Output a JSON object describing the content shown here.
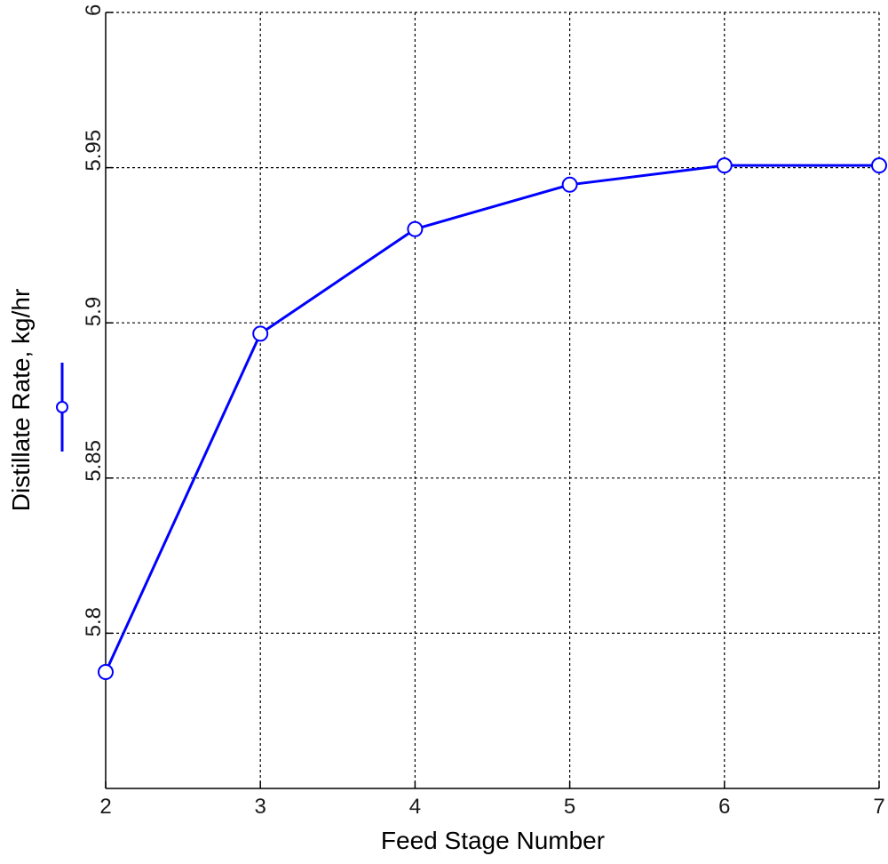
{
  "chart_data": {
    "type": "line",
    "title": "",
    "xlabel": "Feed Stage Number",
    "ylabel": "Distillate Rate, kg/hr",
    "xlim": [
      2,
      7
    ],
    "ylim": [
      5.75,
      6.0
    ],
    "xticks": [
      2,
      3,
      4,
      5,
      6,
      7
    ],
    "yticks": [
      5.8,
      5.85,
      5.9,
      5.95,
      6.0
    ],
    "ytick_labels": [
      "5.8",
      "5.85",
      "5.9",
      "5.95",
      "6"
    ],
    "grid": true,
    "legend": "marker sample beside y-axis label",
    "series": [
      {
        "color": "#0000ff",
        "marker": "circle",
        "x": [
          2,
          3,
          4,
          5,
          6,
          7
        ],
        "y": [
          5.7875,
          5.8965,
          5.9302,
          5.9445,
          5.9507,
          5.9507
        ]
      }
    ]
  }
}
